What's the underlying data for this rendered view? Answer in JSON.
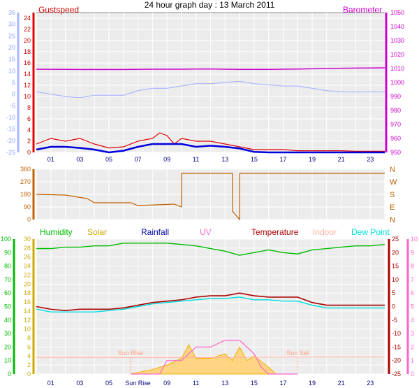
{
  "title": "24 hour graph day : 13 March 2011",
  "colors": {
    "gust": "#e00000",
    "avg_wind": "#0000dd",
    "barometer": "#cc00cc",
    "temp_axis": "#aab4ff",
    "humidity": "#00bb00",
    "solar": "#ccaa00",
    "rainfall": "#0000aa",
    "uv": "#ff66cc",
    "temperature": "#aa0000",
    "indoor": "#ffb0a0",
    "dew_point": "#00dddd",
    "wind_dir": "#c06000",
    "bg": "#ececec",
    "grid": "#ffffff"
  },
  "x_ticks": [
    "01",
    "03",
    "05",
    "07",
    "09",
    "11",
    "13",
    "15",
    "17",
    "19",
    "21",
    "23"
  ],
  "x_ticks_bottom": [
    "01",
    "03",
    "05",
    "Sun Rise",
    "09",
    "11",
    "13",
    "15",
    "17",
    "19",
    "21",
    "23"
  ],
  "chart_data": [
    {
      "type": "line",
      "name": "wind-and-barometer",
      "left_label": "Gustspeed",
      "right_label": "Barometer",
      "left_ticks": [
        0,
        2,
        4,
        6,
        8,
        10,
        12,
        14,
        16,
        18,
        20,
        22,
        24
      ],
      "left_ylim": [
        0,
        25
      ],
      "right_ticks": [
        950,
        960,
        970,
        980,
        990,
        1000,
        1010,
        1020,
        1030,
        1040,
        1050
      ],
      "right_ylim": [
        950,
        1050
      ],
      "outer_ticks": [
        -25,
        -20,
        -15,
        -10,
        -5,
        0,
        5,
        10,
        15,
        20,
        25,
        30,
        35
      ],
      "outer_ylim": [
        -25,
        35
      ],
      "series": [
        {
          "name": "Gustspeed",
          "axis": "left",
          "x": [
            0,
            1,
            2,
            3,
            4,
            5,
            6,
            7,
            8,
            8.5,
            9,
            9.5,
            10,
            11,
            12,
            13,
            14,
            15,
            16,
            17,
            18,
            19,
            20,
            21,
            22,
            23,
            24
          ],
          "y": [
            1.5,
            2.5,
            2,
            2.5,
            1.5,
            0.8,
            1,
            2,
            2.5,
            3.5,
            3,
            1.5,
            2.5,
            2,
            2,
            1.5,
            1,
            0.5,
            0.5,
            0.5,
            0.3,
            0.3,
            0.3,
            0.3,
            0.2,
            0.2,
            0.2
          ]
        },
        {
          "name": "Average wind",
          "axis": "left",
          "x": [
            0,
            1,
            2,
            3,
            4,
            5,
            6,
            7,
            8,
            9,
            10,
            11,
            12,
            13,
            14,
            15,
            16,
            17,
            18,
            19,
            20,
            21,
            22,
            23,
            24
          ],
          "y": [
            0.5,
            1,
            1,
            0.8,
            0.5,
            0,
            0.3,
            1,
            1.5,
            1.5,
            1.5,
            1,
            1.2,
            1,
            0.7,
            0.1,
            0,
            0,
            0,
            0,
            0,
            0,
            0,
            0,
            0
          ]
        },
        {
          "name": "Barometer",
          "axis": "right",
          "x": [
            0,
            3,
            6,
            8,
            9,
            10,
            11,
            12,
            13,
            14,
            15,
            16,
            17,
            18,
            19,
            20,
            21,
            22,
            23,
            24
          ],
          "y": [
            1009.5,
            1009.3,
            1009.3,
            1009.5,
            1009.5,
            1009.5,
            1009.6,
            1009.7,
            1009.5,
            1009.4,
            1009.4,
            1009.4,
            1009.5,
            1009.6,
            1009.8,
            1010,
            1010.2,
            1010.3,
            1010.4,
            1010.5
          ]
        },
        {
          "name": "Temperature",
          "axis": "outer",
          "x": [
            0,
            1,
            2,
            3,
            4,
            5,
            6,
            7,
            8,
            9,
            10,
            11,
            12,
            13,
            14,
            15,
            16,
            17,
            18,
            19,
            20,
            21,
            22,
            23,
            24
          ],
          "y": [
            1,
            0,
            -1,
            -1.5,
            -0.5,
            -0.5,
            -0.5,
            1.5,
            2.5,
            2.5,
            3.5,
            4.5,
            4.5,
            5,
            5.5,
            4.5,
            4,
            3.5,
            3.5,
            2.5,
            1.5,
            1,
            1,
            1,
            1
          ]
        }
      ]
    },
    {
      "type": "line",
      "name": "wind-direction",
      "left_ticks": [
        0,
        90,
        180,
        270,
        360
      ],
      "ylim": [
        0,
        360
      ],
      "compass_labels": [
        "N",
        "W",
        "S",
        "E",
        "N"
      ],
      "series": [
        {
          "name": "Wind direction",
          "x": [
            0,
            2,
            3.5,
            4,
            6.5,
            7,
            9.5,
            10,
            10.01,
            12,
            12.01,
            13,
            13.01,
            13.5,
            13.51,
            14,
            14.01,
            24
          ],
          "y": [
            180,
            175,
            150,
            120,
            120,
            100,
            110,
            90,
            330,
            330,
            330,
            330,
            330,
            330,
            60,
            0,
            330,
            330
          ]
        }
      ]
    },
    {
      "type": "line",
      "name": "humidity-solar-temperature",
      "labels": [
        "Humidity",
        "Solar",
        "Rainfall",
        "UV",
        "Temperature",
        "Indoor",
        "Dew Point"
      ],
      "humidity_ticks": [
        0,
        10,
        20,
        30,
        40,
        50,
        60,
        70,
        80,
        90,
        100
      ],
      "solar_ticks": [
        0,
        2,
        4,
        6,
        8,
        10,
        12,
        14,
        16,
        18,
        20,
        22,
        24,
        26,
        28,
        30
      ],
      "temp_ticks": [
        -25,
        -20,
        -15,
        -10,
        -5,
        0,
        5,
        10,
        15,
        20,
        25
      ],
      "uv_ticks": [
        0,
        1,
        2,
        3,
        4,
        5,
        6,
        7,
        8,
        9,
        10
      ],
      "sun_rise_label": "Sun Rise",
      "sun_set_label": "Sun Set",
      "sun_rise": 6.5,
      "sun_set": 18.0,
      "series": [
        {
          "name": "Humidity",
          "x": [
            0,
            1,
            2,
            3,
            4,
            5,
            6,
            7,
            8,
            9,
            10,
            11,
            12,
            13,
            14,
            15,
            16,
            17,
            18,
            19,
            20,
            21,
            22,
            23,
            24
          ],
          "y": [
            93,
            93,
            94,
            94,
            95,
            95,
            97,
            97,
            97,
            97,
            96,
            95,
            93,
            91,
            88,
            90,
            92,
            90,
            89,
            92,
            93,
            94,
            95,
            95,
            96
          ]
        },
        {
          "name": "Temperature",
          "x": [
            0,
            1,
            2,
            3,
            4,
            5,
            6,
            7,
            8,
            9,
            10,
            11,
            12,
            13,
            14,
            15,
            16,
            17,
            18,
            19,
            20,
            21,
            22,
            23,
            24
          ],
          "y": [
            0,
            -1,
            -1.5,
            -1,
            -1,
            -1,
            -0.5,
            0.5,
            1.5,
            2,
            2.5,
            3.5,
            4,
            4,
            5,
            4,
            3.5,
            3.5,
            3.5,
            1.5,
            0.5,
            0.5,
            0.5,
            0.5,
            0.5
          ]
        },
        {
          "name": "Dew Point",
          "x": [
            0,
            1,
            2,
            3,
            4,
            5,
            6,
            7,
            8,
            9,
            10,
            11,
            12,
            13,
            14,
            15,
            16,
            17,
            18,
            19,
            20,
            21,
            22,
            23,
            24
          ],
          "y": [
            -1,
            -2,
            -2,
            -2,
            -2,
            -1.5,
            -1,
            0,
            1,
            1.5,
            2,
            2.5,
            3,
            3,
            3.5,
            2.5,
            2.5,
            2,
            2,
            0.5,
            -0.5,
            -0.5,
            -0.5,
            -0.5,
            -0.5
          ]
        },
        {
          "name": "Indoor",
          "x": [
            0,
            12,
            16,
            20,
            24
          ],
          "y": [
            12.5,
            12.3,
            12.6,
            12.7,
            12.7
          ]
        },
        {
          "name": "Solar",
          "x": [
            6.5,
            8,
            9,
            10,
            10.5,
            11,
            12,
            13,
            13.5,
            14,
            14.5,
            15,
            16,
            16.5,
            18
          ],
          "y": [
            0,
            1,
            2,
            3.5,
            6.5,
            3.5,
            3.5,
            4.5,
            3,
            6,
            3,
            4,
            1.5,
            0,
            0
          ]
        },
        {
          "name": "UV",
          "x": [
            6.5,
            8.5,
            9,
            10,
            11,
            12,
            13,
            14,
            15,
            15.5,
            16,
            18
          ],
          "y": [
            0,
            0,
            1,
            1,
            2,
            2,
            2.5,
            2.5,
            1.5,
            0.5,
            0,
            0
          ]
        }
      ]
    }
  ]
}
